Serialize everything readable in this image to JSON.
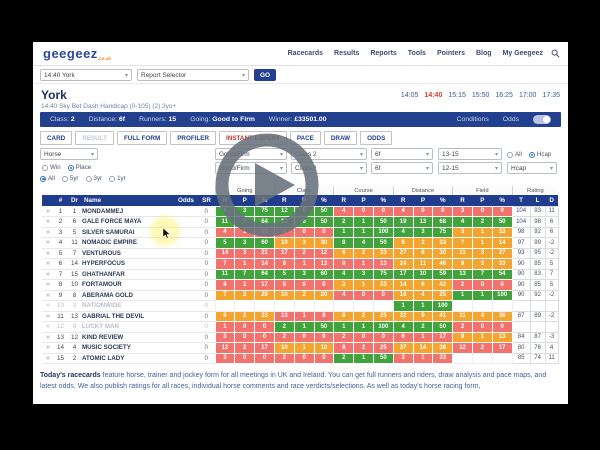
{
  "nav": {
    "logo": "geegeez",
    "logo_suffix": ".co.uk",
    "items": [
      "Racecards",
      "Results",
      "Reports",
      "Tools",
      "Pointers",
      "Blog",
      "My Geegeez"
    ],
    "search_icon": "magnifier-icon"
  },
  "selector_bar": {
    "race_select": "14:40 York",
    "report_select": "Report Selector",
    "go_label": "GO"
  },
  "race_header": {
    "course": "York",
    "subtitle": "14:40 Sky Bet Dash Handicap (0-105) (2) 3yo+",
    "times": [
      "14:05",
      "14:40",
      "15:15",
      "15:50",
      "16:25",
      "17:00",
      "17:35"
    ],
    "active_time": "14:40"
  },
  "race_info": {
    "class_label": "Class:",
    "class": "2",
    "distance_label": "Distance:",
    "distance": "6f",
    "runners_label": "Runners:",
    "runners": "15",
    "going_label": "Going:",
    "going": "Good to Firm",
    "winner_label": "Winner:",
    "winner": "£33501.00",
    "conditions_label": "Conditions",
    "odds_label": "Odds",
    "odds_toggle": "on"
  },
  "tabs": [
    {
      "label": "CARD",
      "state": "normal"
    },
    {
      "label": "RESULT",
      "state": "disabled"
    },
    {
      "label": "FULL FORM",
      "state": "normal"
    },
    {
      "label": "PROFILER",
      "state": "normal"
    },
    {
      "label": "INSTANT EXPERT",
      "state": "active"
    },
    {
      "label": "PACE",
      "state": "normal"
    },
    {
      "label": "DRAW",
      "state": "normal"
    },
    {
      "label": "ODDS",
      "state": "normal"
    }
  ],
  "filters": {
    "horse_select": "Horse",
    "bet_type": {
      "options": [
        "Win",
        "Place"
      ],
      "selected": "Place"
    },
    "form_span": {
      "options": [
        "All",
        "5yr",
        "3yr",
        "1yr"
      ],
      "selected": "All"
    },
    "row1": [
      {
        "kind": "select",
        "value": "Good/Firm"
      },
      {
        "kind": "select",
        "value": "Class 2"
      },
      {
        "kind": "select",
        "value": "6f"
      },
      {
        "kind": "select",
        "value": "13-15"
      },
      {
        "kind": "radios",
        "options": [
          "All",
          "Hcap"
        ],
        "selected": "Hcap"
      }
    ],
    "row2": [
      {
        "kind": "select",
        "value": "Good/Firm"
      },
      {
        "kind": "select",
        "value": "Class 2"
      },
      {
        "kind": "select",
        "value": "6f"
      },
      {
        "kind": "select",
        "value": "12-15"
      },
      {
        "kind": "select",
        "value": "Hcap"
      }
    ]
  },
  "table": {
    "groups": [
      "Going",
      "Class",
      "Course",
      "Distance",
      "Field",
      "Rating"
    ],
    "left_headers": [
      "#",
      "Dr",
      "Name",
      "Odds",
      "SR"
    ],
    "stat_headers": [
      "R",
      "P",
      "%"
    ],
    "rating_headers": [
      "T",
      "L",
      "D"
    ],
    "rows": [
      {
        "num": "1",
        "dr": "1",
        "name": "MONDAMMEJ",
        "odds": "",
        "sr": "0",
        "muted": false,
        "stats": [
          [
            "g",
            "4",
            "3",
            "75"
          ],
          [
            "g",
            "12",
            "6",
            "50"
          ],
          [
            "r",
            "4",
            "0",
            "0"
          ],
          [
            "r",
            "4",
            "0",
            "0"
          ],
          [
            "r",
            "3",
            "0",
            "0"
          ]
        ],
        "rating": [
          "104",
          "93",
          "11"
        ]
      },
      {
        "num": "2",
        "dr": "6",
        "name": "GALE FORCE MAYA",
        "odds": "",
        "sr": "0",
        "muted": false,
        "stats": [
          [
            "g",
            "11",
            "7",
            "64"
          ],
          [
            "g",
            "12",
            "6",
            "50"
          ],
          [
            "g",
            "2",
            "1",
            "50"
          ],
          [
            "g",
            "19",
            "13",
            "68"
          ],
          [
            "g",
            "4",
            "2",
            "50"
          ]
        ],
        "rating": [
          "104",
          "98",
          "6"
        ]
      },
      {
        "num": "3",
        "dr": "5",
        "name": "SILVER SAMURAI",
        "odds": "",
        "sr": "0",
        "muted": false,
        "stats": [
          [
            "r",
            "4",
            "1",
            "25"
          ],
          [
            "r",
            "4",
            "0",
            "0"
          ],
          [
            "g",
            "1",
            "1",
            "100"
          ],
          [
            "g",
            "4",
            "3",
            "75"
          ],
          [
            "o",
            "3",
            "1",
            "33"
          ]
        ],
        "rating": [
          "98",
          "92",
          "6"
        ]
      },
      {
        "num": "4",
        "dr": "11",
        "name": "NOMADIC EMPIRE",
        "odds": "",
        "sr": "0",
        "muted": false,
        "stats": [
          [
            "g",
            "5",
            "3",
            "60"
          ],
          [
            "o",
            "10",
            "3",
            "30"
          ],
          [
            "g",
            "8",
            "4",
            "50"
          ],
          [
            "o",
            "6",
            "2",
            "33"
          ],
          [
            "o",
            "7",
            "1",
            "14"
          ]
        ],
        "rating": [
          "97",
          "99",
          "-2"
        ]
      },
      {
        "num": "5",
        "dr": "7",
        "name": "VENTUROUS",
        "odds": "",
        "sr": "0",
        "muted": false,
        "stats": [
          [
            "r",
            "14",
            "3",
            "21"
          ],
          [
            "r",
            "17",
            "2",
            "12"
          ],
          [
            "o",
            "6",
            "2",
            "33"
          ],
          [
            "o",
            "27",
            "8",
            "30"
          ],
          [
            "o",
            "11",
            "3",
            "27"
          ]
        ],
        "rating": [
          "93",
          "95",
          "-2"
        ]
      },
      {
        "num": "6",
        "dr": "14",
        "name": "HYPERFOCUS",
        "odds": "",
        "sr": "0",
        "muted": false,
        "stats": [
          [
            "r",
            "7",
            "1",
            "14"
          ],
          [
            "r",
            "8",
            "1",
            "13"
          ],
          [
            "r",
            "8",
            "1",
            "13"
          ],
          [
            "o",
            "24",
            "11",
            "46"
          ],
          [
            "o",
            "9",
            "3",
            "33"
          ]
        ],
        "rating": [
          "90",
          "85",
          "5"
        ]
      },
      {
        "num": "7",
        "dr": "15",
        "name": "GHATHANFAR",
        "odds": "",
        "sr": "0",
        "muted": false,
        "stats": [
          [
            "g",
            "11",
            "7",
            "64"
          ],
          [
            "g",
            "5",
            "3",
            "60"
          ],
          [
            "g",
            "4",
            "3",
            "75"
          ],
          [
            "g",
            "17",
            "10",
            "59"
          ],
          [
            "g",
            "13",
            "7",
            "54"
          ]
        ],
        "rating": [
          "90",
          "83",
          "7"
        ]
      },
      {
        "num": "8",
        "dr": "10",
        "name": "FORTAMOUR",
        "odds": "",
        "sr": "0",
        "muted": false,
        "stats": [
          [
            "r",
            "6",
            "1",
            "17"
          ],
          [
            "r",
            "5",
            "0",
            "0"
          ],
          [
            "o",
            "3",
            "1",
            "33"
          ],
          [
            "o",
            "14",
            "6",
            "43"
          ],
          [
            "r",
            "2",
            "0",
            "0"
          ]
        ],
        "rating": [
          "90",
          "85",
          "5"
        ]
      },
      {
        "num": "9",
        "dr": "8",
        "name": "ABERAMA GOLD",
        "odds": "",
        "sr": "0",
        "muted": false,
        "stats": [
          [
            "o",
            "7",
            "2",
            "29"
          ],
          [
            "o",
            "10",
            "2",
            "20"
          ],
          [
            "r",
            "4",
            "0",
            "0"
          ],
          [
            "o",
            "16",
            "4",
            "25"
          ],
          [
            "g",
            "1",
            "1",
            "100"
          ]
        ],
        "rating": [
          "90",
          "92",
          "-2"
        ]
      },
      {
        "num": "10",
        "dr": "3",
        "name": "NATIONWIDE",
        "odds": "",
        "sr": "0",
        "muted": true,
        "stats": [
          [
            "w",
            "",
            "",
            ""
          ],
          [
            "w",
            "",
            "",
            ""
          ],
          [
            "w",
            "",
            "",
            ""
          ],
          [
            "g",
            "1",
            "1",
            "100"
          ],
          [
            "w",
            "",
            "",
            ""
          ]
        ],
        "rating": [
          "",
          "",
          ""
        ]
      },
      {
        "num": "11",
        "dr": "13",
        "name": "GABRIAL THE DEVIL",
        "odds": "",
        "sr": "0",
        "muted": false,
        "stats": [
          [
            "o",
            "6",
            "2",
            "33"
          ],
          [
            "r",
            "13",
            "1",
            "8"
          ],
          [
            "o",
            "8",
            "2",
            "25"
          ],
          [
            "o",
            "22",
            "9",
            "41"
          ],
          [
            "o",
            "11",
            "4",
            "36"
          ]
        ],
        "rating": [
          "87",
          "89",
          "-2"
        ]
      },
      {
        "num": "12",
        "dr": "9",
        "name": "LUCKY MAN",
        "odds": "",
        "sr": "0",
        "muted": true,
        "stats": [
          [
            "r",
            "1",
            "0",
            "0"
          ],
          [
            "g",
            "2",
            "1",
            "50"
          ],
          [
            "g",
            "1",
            "1",
            "100"
          ],
          [
            "g",
            "4",
            "2",
            "50"
          ],
          [
            "r",
            "2",
            "0",
            "0"
          ]
        ],
        "rating": [
          "",
          "",
          ""
        ]
      },
      {
        "num": "13",
        "dr": "12",
        "name": "KIND REVIEW",
        "odds": "",
        "sr": "0",
        "muted": false,
        "stats": [
          [
            "r",
            "3",
            "0",
            "0"
          ],
          [
            "r",
            "2",
            "0",
            "0"
          ],
          [
            "r",
            "2",
            "0",
            "0"
          ],
          [
            "r",
            "6",
            "1",
            "17"
          ],
          [
            "o",
            "8",
            "1",
            "13"
          ]
        ],
        "rating": [
          "84",
          "87",
          "-3"
        ]
      },
      {
        "num": "14",
        "dr": "4",
        "name": "MUSIC SOCIETY",
        "odds": "",
        "sr": "0",
        "muted": false,
        "stats": [
          [
            "r",
            "12",
            "2",
            "17"
          ],
          [
            "o",
            "10",
            "1",
            "10"
          ],
          [
            "r",
            "8",
            "2",
            "25"
          ],
          [
            "o",
            "37",
            "14",
            "38"
          ],
          [
            "r",
            "12",
            "2",
            "17"
          ]
        ],
        "rating": [
          "80",
          "76",
          "4"
        ]
      },
      {
        "num": "15",
        "dr": "2",
        "name": "ATOMIC LADY",
        "odds": "",
        "sr": "0",
        "muted": false,
        "stats": [
          [
            "r",
            "3",
            "0",
            "0"
          ],
          [
            "r",
            "2",
            "0",
            "0"
          ],
          [
            "g",
            "2",
            "1",
            "50"
          ],
          [
            "r",
            "3",
            "1",
            "33"
          ],
          [
            "w",
            "",
            "",
            ""
          ]
        ],
        "rating": [
          "85",
          "74",
          "11"
        ]
      }
    ]
  },
  "footer": {
    "lead": "Today's racecards",
    "text": " feature horse, trainer and jockey form for all meetings in UK and Ireland. You can get full runners and riders, draw analysis and pace maps, and latest odds. We also publish ratings for all races, individual horse comments and race verdicts/selections. As well as today's horse racing form,"
  },
  "overlay": {
    "play_button": "play-icon"
  },
  "colors": {
    "green": "#41a33c",
    "orange": "#f3a52f",
    "red": "#f2736d",
    "navy": "#1f3d8c",
    "tab_active_red": "#c9302c",
    "time_active_red": "#d63a2f"
  }
}
